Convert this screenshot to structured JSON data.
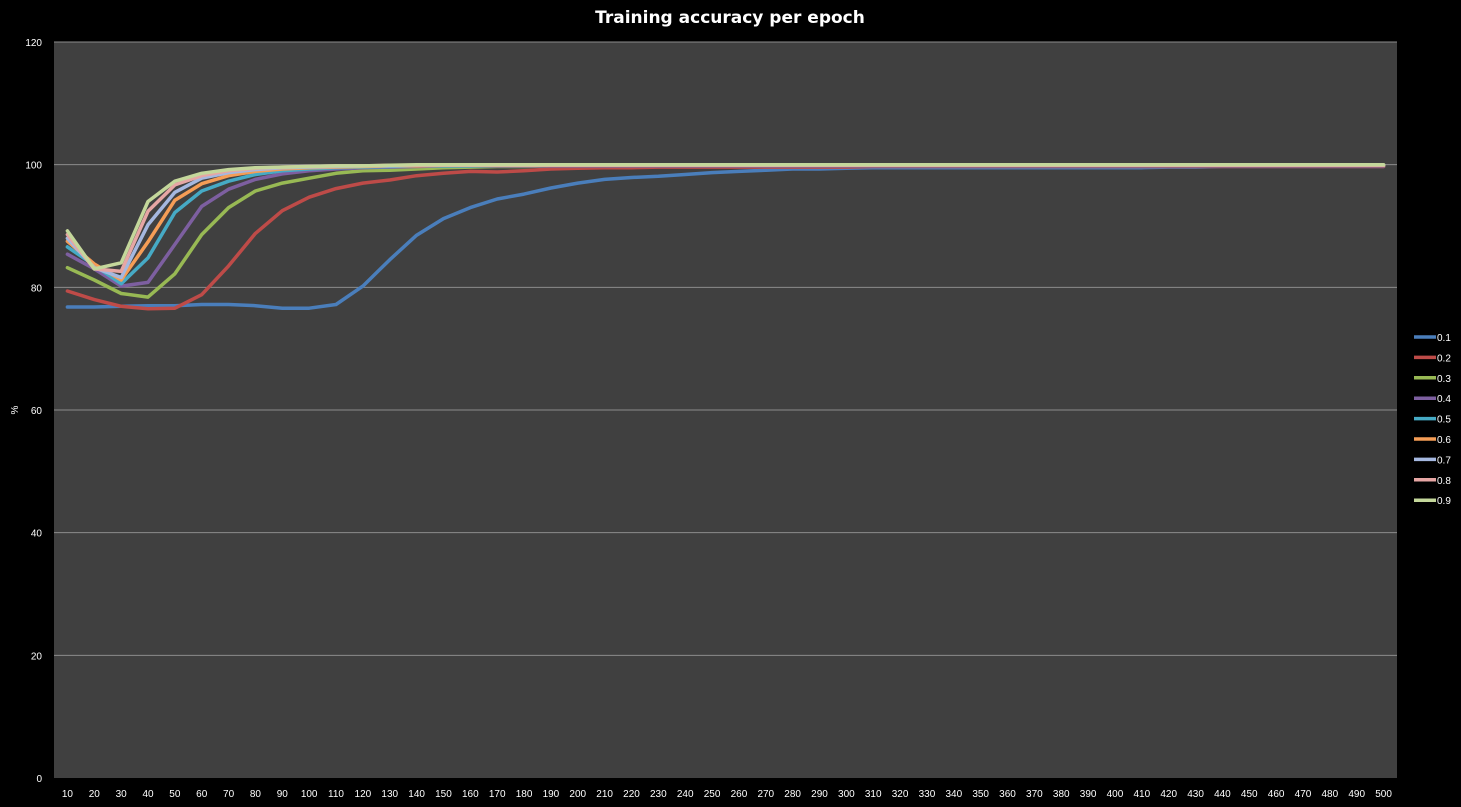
{
  "chart_data": {
    "type": "line",
    "title": "Training accuracy  per epoch",
    "xlabel": "",
    "ylabel": "%",
    "ylim": [
      0,
      120
    ],
    "yticks": [
      0,
      20,
      40,
      60,
      80,
      100,
      120
    ],
    "grid": true,
    "legend": "right",
    "plot_background": "#404040",
    "background": "#000000",
    "x": [
      10,
      20,
      30,
      40,
      50,
      60,
      70,
      80,
      90,
      100,
      110,
      120,
      130,
      140,
      150,
      160,
      170,
      180,
      190,
      200,
      210,
      220,
      230,
      240,
      250,
      260,
      270,
      280,
      290,
      300,
      310,
      320,
      330,
      340,
      350,
      360,
      370,
      380,
      390,
      400,
      410,
      420,
      430,
      440,
      450,
      460,
      470,
      480,
      490,
      500
    ],
    "series": [
      {
        "name": "0.1",
        "color": "#4a7ebb",
        "values": [
          76.8,
          76.8,
          76.9,
          77.0,
          77.0,
          77.2,
          77.2,
          77.0,
          76.6,
          76.6,
          77.2,
          80.2,
          84.5,
          88.5,
          91.2,
          93.0,
          94.4,
          95.2,
          96.2,
          97.0,
          97.6,
          97.9,
          98.1,
          98.4,
          98.7,
          98.9,
          99.1,
          99.3,
          99.3,
          99.4,
          99.5,
          99.5,
          99.5,
          99.5,
          99.5,
          99.5,
          99.5,
          99.5,
          99.5,
          99.5,
          99.5,
          99.6,
          99.6,
          99.7,
          99.7,
          99.7,
          99.7,
          99.7,
          99.7,
          99.7
        ]
      },
      {
        "name": "0.2",
        "color": "#be4b48",
        "values": [
          79.4,
          78.0,
          76.9,
          76.5,
          76.6,
          78.8,
          83.5,
          88.8,
          92.5,
          94.7,
          96.1,
          97.0,
          97.5,
          98.2,
          98.6,
          98.9,
          98.8,
          99.0,
          99.3,
          99.4,
          99.5,
          99.5,
          99.6,
          99.6,
          99.6,
          99.6,
          99.6,
          99.6,
          99.6,
          99.6,
          99.7,
          99.7,
          99.7,
          99.7,
          99.7,
          99.7,
          99.7,
          99.7,
          99.7,
          99.7,
          99.7,
          99.7,
          99.7,
          99.7,
          99.7,
          99.7,
          99.7,
          99.7,
          99.7,
          99.7
        ]
      },
      {
        "name": "0.3",
        "color": "#98b954",
        "values": [
          83.2,
          81.2,
          79.0,
          78.4,
          82.2,
          88.6,
          93.0,
          95.7,
          97.0,
          97.8,
          98.6,
          99.0,
          99.1,
          99.3,
          99.5,
          99.6,
          99.7,
          99.7,
          99.8,
          99.8,
          99.8,
          99.8,
          99.8,
          99.8,
          99.8,
          99.8,
          99.8,
          99.8,
          99.8,
          99.8,
          99.8,
          99.8,
          99.8,
          99.8,
          99.8,
          99.8,
          99.8,
          99.8,
          99.8,
          99.8,
          99.8,
          99.8,
          99.8,
          99.8,
          99.8,
          99.8,
          99.8,
          99.8,
          99.8,
          99.8
        ]
      },
      {
        "name": "0.4",
        "color": "#7d5fa0",
        "values": [
          85.4,
          83.0,
          80.2,
          80.8,
          87.0,
          93.2,
          96.0,
          97.6,
          98.5,
          99.0,
          99.3,
          99.5,
          99.6,
          99.7,
          99.8,
          99.8,
          99.8,
          99.8,
          99.8,
          99.8,
          99.8,
          99.8,
          99.8,
          99.8,
          99.8,
          99.8,
          99.8,
          99.8,
          99.8,
          99.8,
          99.8,
          99.8,
          99.8,
          99.8,
          99.8,
          99.8,
          99.8,
          99.8,
          99.8,
          99.8,
          99.8,
          99.8,
          99.8,
          99.8,
          99.8,
          99.8,
          99.8,
          99.8,
          99.8,
          99.8
        ]
      },
      {
        "name": "0.5",
        "color": "#46aac5",
        "values": [
          86.6,
          83.6,
          80.6,
          84.8,
          92.2,
          95.7,
          97.3,
          98.4,
          99.0,
          99.3,
          99.5,
          99.6,
          99.7,
          99.8,
          99.8,
          99.8,
          99.9,
          99.9,
          99.9,
          99.9,
          99.9,
          99.9,
          99.9,
          99.9,
          99.9,
          99.9,
          99.9,
          99.9,
          99.9,
          99.9,
          99.9,
          99.9,
          99.9,
          99.9,
          99.9,
          99.9,
          99.9,
          99.9,
          99.9,
          99.9,
          99.9,
          99.9,
          99.9,
          99.9,
          99.9,
          99.9,
          99.9,
          99.9,
          99.9,
          99.9
        ]
      },
      {
        "name": "0.6",
        "color": "#f59d56",
        "values": [
          87.5,
          83.8,
          81.2,
          87.4,
          94.2,
          96.9,
          98.2,
          98.9,
          99.3,
          99.5,
          99.6,
          99.7,
          99.8,
          99.8,
          99.9,
          99.9,
          99.9,
          99.9,
          99.9,
          99.9,
          99.9,
          99.9,
          99.9,
          99.9,
          99.9,
          99.9,
          99.9,
          99.9,
          99.9,
          99.9,
          99.9,
          99.9,
          99.9,
          99.9,
          99.9,
          99.9,
          99.9,
          99.9,
          99.9,
          99.9,
          99.9,
          99.9,
          99.9,
          99.9,
          99.9,
          99.9,
          99.9,
          99.9,
          99.9,
          99.9
        ]
      },
      {
        "name": "0.7",
        "color": "#a5b8e0",
        "values": [
          88.0,
          83.2,
          81.6,
          90.2,
          95.5,
          97.8,
          98.7,
          99.2,
          99.5,
          99.6,
          99.7,
          99.8,
          99.8,
          99.9,
          99.9,
          99.9,
          99.9,
          99.9,
          99.9,
          99.9,
          99.9,
          99.9,
          99.9,
          99.9,
          99.9,
          99.9,
          99.9,
          99.9,
          99.9,
          99.9,
          99.9,
          99.9,
          99.9,
          99.9,
          99.9,
          99.9,
          99.9,
          99.9,
          99.9,
          99.9,
          99.9,
          99.9,
          99.9,
          99.9,
          99.9,
          99.9,
          99.9,
          99.9,
          99.9,
          99.9
        ]
      },
      {
        "name": "0.8",
        "color": "#e6a6a4",
        "values": [
          88.6,
          83.0,
          82.6,
          92.4,
          96.7,
          98.2,
          99.0,
          99.4,
          99.6,
          99.7,
          99.8,
          99.8,
          99.9,
          99.9,
          99.9,
          99.9,
          99.9,
          99.9,
          99.9,
          99.9,
          99.9,
          99.9,
          99.9,
          99.9,
          99.9,
          99.9,
          99.9,
          99.9,
          99.9,
          99.9,
          99.9,
          99.9,
          99.9,
          99.9,
          99.9,
          99.9,
          99.9,
          99.9,
          99.9,
          99.9,
          99.9,
          99.9,
          99.9,
          99.9,
          99.9,
          99.9,
          99.9,
          99.9,
          99.9,
          99.9
        ]
      },
      {
        "name": "0.9",
        "color": "#c4d79b",
        "values": [
          89.2,
          83.0,
          84.0,
          94.0,
          97.3,
          98.6,
          99.2,
          99.5,
          99.6,
          99.7,
          99.8,
          99.8,
          99.9,
          100.0,
          100.0,
          100.0,
          100.0,
          100.0,
          100.0,
          100.0,
          100.0,
          100.0,
          100.0,
          100.0,
          100.0,
          100.0,
          100.0,
          100.0,
          100.0,
          100.0,
          100.0,
          100.0,
          100.0,
          100.0,
          100.0,
          100.0,
          100.0,
          100.0,
          100.0,
          100.0,
          100.0,
          100.0,
          100.0,
          100.0,
          100.0,
          100.0,
          100.0,
          100.0,
          100.0,
          100.0
        ]
      }
    ]
  }
}
